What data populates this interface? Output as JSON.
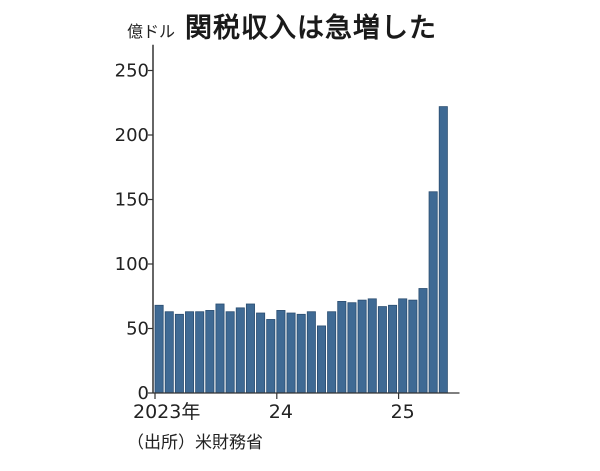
{
  "header": {
    "unit": "億ドル",
    "title": "関税収入は急増した"
  },
  "source": "（出所）米財務省",
  "colors": {
    "bar": "#3f6a94",
    "bar_stroke": "#2a4d70",
    "axis": "#333333"
  },
  "chart_data": {
    "type": "bar",
    "title": "関税収入は急増した",
    "ylabel": "億ドル",
    "ylim": [
      0,
      270
    ],
    "yticks": [
      0,
      50,
      100,
      150,
      200,
      250
    ],
    "xtick_labels": [
      {
        "index": 0,
        "label": "2023年"
      },
      {
        "index": 12,
        "label": "24"
      },
      {
        "index": 24,
        "label": "25"
      }
    ],
    "categories": [
      "2023-01",
      "2023-02",
      "2023-03",
      "2023-04",
      "2023-05",
      "2023-06",
      "2023-07",
      "2023-08",
      "2023-09",
      "2023-10",
      "2023-11",
      "2023-12",
      "2024-01",
      "2024-02",
      "2024-03",
      "2024-04",
      "2024-05",
      "2024-06",
      "2024-07",
      "2024-08",
      "2024-09",
      "2024-10",
      "2024-11",
      "2024-12",
      "2025-01",
      "2025-02",
      "2025-03",
      "2025-04",
      "2025-05",
      "2025-06"
    ],
    "values": [
      68,
      63,
      61,
      63,
      63,
      64,
      69,
      63,
      66,
      69,
      62,
      57,
      64,
      62,
      61,
      63,
      52,
      63,
      71,
      70,
      72,
      73,
      67,
      68,
      73,
      72,
      81,
      156,
      222,
      0
    ],
    "grid": false
  }
}
